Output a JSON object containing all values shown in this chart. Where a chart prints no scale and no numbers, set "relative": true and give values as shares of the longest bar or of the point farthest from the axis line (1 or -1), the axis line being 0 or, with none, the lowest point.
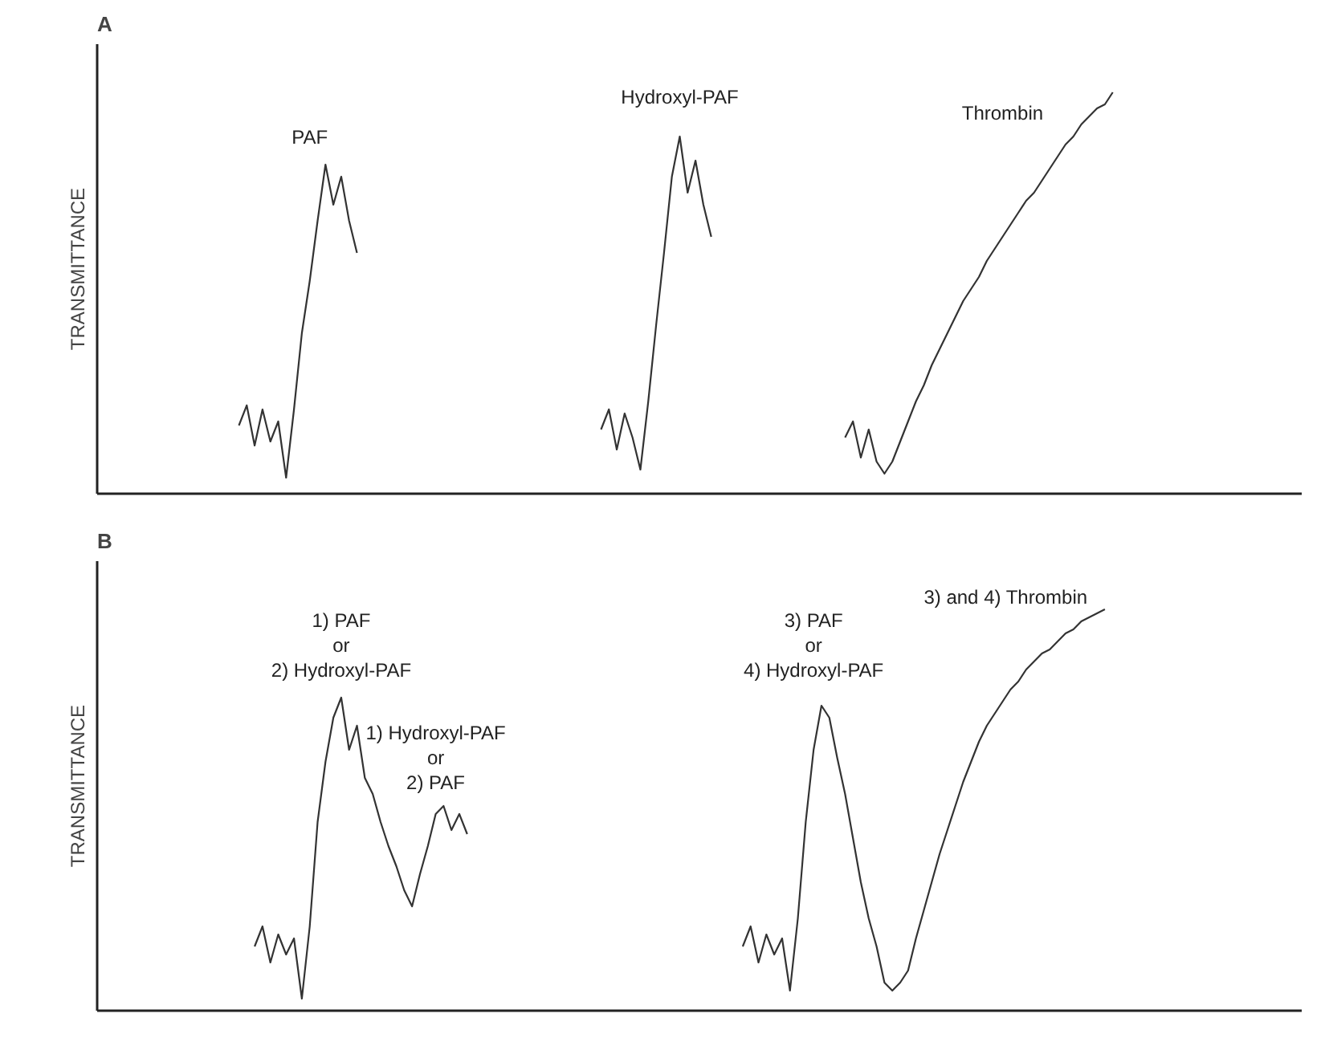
{
  "chart_data": [
    {
      "type": "line",
      "title": "A",
      "ylabel": "TRANSMITTANCE",
      "relative": true,
      "annotations": [
        "PAF",
        "Hydroxyl-PAF",
        "Thrombin"
      ],
      "categories": [
        null,
        null,
        null,
        null,
        null,
        null,
        null,
        null,
        null,
        null,
        null,
        null,
        null,
        null,
        null,
        null,
        null,
        null,
        null,
        null,
        null,
        null,
        null,
        null,
        null,
        null,
        null,
        null,
        null,
        null,
        null,
        null,
        null,
        null,
        null,
        null,
        null,
        null,
        null,
        null,
        null,
        null,
        null,
        null,
        null,
        null,
        null,
        null,
        null,
        null,
        null,
        null,
        null,
        null,
        null,
        null,
        null,
        null,
        null,
        null,
        null,
        null,
        null,
        null,
        null,
        null,
        null,
        null,
        null,
        null,
        null,
        null,
        null,
        null,
        null,
        null,
        null,
        null,
        null,
        null,
        null,
        null,
        null,
        null,
        null,
        null,
        null,
        null,
        null,
        null,
        null,
        null,
        null,
        null,
        null,
        null,
        null,
        null,
        null,
        null,
        null,
        null,
        null,
        null,
        null,
        null,
        null,
        null,
        null,
        null,
        null,
        null,
        null,
        null,
        null,
        null,
        null,
        null,
        null,
        null,
        null,
        null,
        null,
        null,
        null,
        null,
        null,
        null,
        null,
        null,
        null,
        null,
        null,
        null,
        null,
        null,
        null,
        null,
        null,
        null,
        null,
        null,
        null
      ],
      "series": [
        {
          "color": "#333333",
          "values": [
            null,
            null,
            null,
            null,
            null,
            null,
            null,
            null,
            null,
            null,
            null,
            null,
            null,
            null,
            null,
            null,
            0.17,
            0.22,
            0.12,
            0.21,
            0.13,
            0.18,
            0.04,
            0.21,
            0.4,
            0.53,
            0.68,
            0.82,
            0.72,
            0.79,
            0.68,
            0.6,
            null,
            null,
            null,
            null,
            null,
            null,
            null,
            null,
            null,
            null,
            null,
            null,
            null,
            null,
            null,
            null,
            null,
            null,
            null,
            null,
            null,
            null,
            null,
            null,
            null,
            null,
            null,
            null,
            null,
            null,
            null,
            null,
            null,
            null,
            null,
            null,
            null,
            null,
            null,
            null,
            null,
            null,
            null,
            null,
            null,
            null,
            null,
            null,
            null,
            null,
            null,
            null,
            null,
            null,
            null,
            null,
            null,
            null,
            null,
            null,
            null,
            null,
            null,
            null,
            null,
            null,
            null,
            null,
            null,
            null,
            null,
            null,
            null,
            null,
            null,
            null,
            null,
            null,
            null,
            null,
            null,
            null,
            null,
            null,
            null,
            null,
            null,
            null,
            null,
            null,
            null,
            null,
            null,
            null,
            null,
            null,
            null,
            null,
            null,
            null,
            null,
            null,
            null,
            null,
            null,
            null,
            null,
            null,
            null,
            null,
            null
          ]
        },
        {
          "color": "#333333",
          "values": [
            null,
            null,
            null,
            null,
            null,
            null,
            null,
            null,
            null,
            null,
            null,
            null,
            null,
            null,
            null,
            null,
            null,
            null,
            null,
            null,
            null,
            null,
            null,
            null,
            null,
            null,
            null,
            null,
            null,
            null,
            null,
            null,
            null,
            null,
            null,
            null,
            null,
            null,
            null,
            null,
            null,
            null,
            null,
            null,
            null,
            null,
            null,
            null,
            null,
            null,
            null,
            null,
            null,
            null,
            null,
            null,
            null,
            null,
            null,
            null,
            null,
            null,
            0.16,
            0.21,
            0.11,
            0.2,
            0.14,
            0.06,
            0.23,
            0.42,
            0.6,
            0.79,
            0.89,
            0.75,
            0.83,
            0.72,
            0.64,
            null,
            null,
            null,
            null,
            null,
            null,
            null,
            null,
            null,
            null,
            null,
            null,
            null,
            null,
            null,
            null,
            null,
            null,
            null,
            null,
            null,
            null,
            null,
            null,
            null,
            null,
            null,
            null,
            null,
            null,
            null,
            null,
            null,
            null,
            null,
            null,
            null,
            null,
            null,
            null,
            null,
            null,
            null,
            null,
            null,
            null,
            null,
            null,
            null,
            null,
            null,
            null,
            null,
            null,
            null,
            null,
            null,
            null,
            null,
            null,
            null,
            null,
            null,
            null,
            null,
            null
          ]
        },
        {
          "color": "#333333",
          "values": [
            null,
            null,
            null,
            null,
            null,
            null,
            null,
            null,
            null,
            null,
            null,
            null,
            null,
            null,
            null,
            null,
            null,
            null,
            null,
            null,
            null,
            null,
            null,
            null,
            null,
            null,
            null,
            null,
            null,
            null,
            null,
            null,
            null,
            null,
            null,
            null,
            null,
            null,
            null,
            null,
            null,
            null,
            null,
            null,
            null,
            null,
            null,
            null,
            null,
            null,
            null,
            null,
            null,
            null,
            null,
            null,
            null,
            null,
            null,
            null,
            null,
            null,
            null,
            null,
            null,
            null,
            null,
            null,
            null,
            null,
            null,
            null,
            null,
            null,
            null,
            null,
            null,
            null,
            null,
            null,
            null,
            null,
            null,
            null,
            null,
            null,
            null,
            null,
            null,
            null,
            null,
            null,
            null,
            0.14,
            0.18,
            0.09,
            0.16,
            0.08,
            0.05,
            0.08,
            0.13,
            0.18,
            0.23,
            0.27,
            0.32,
            0.36,
            0.4,
            0.44,
            0.48,
            0.51,
            0.54,
            0.58,
            0.61,
            0.64,
            0.67,
            0.7,
            0.73,
            0.75,
            0.78,
            0.81,
            0.84,
            0.87,
            0.89,
            0.92,
            0.94,
            0.96,
            0.97,
            1.0,
            null,
            null,
            null,
            null,
            null,
            null,
            null,
            null,
            null,
            null,
            null,
            null,
            null,
            null,
            null
          ]
        }
      ]
    },
    {
      "type": "line",
      "title": "B",
      "ylabel": "TRANSMITTANCE",
      "relative": true,
      "annotations": [
        "1) PAF\nor\n2) Hydroxyl-PAF",
        "1) Hydroxyl-PAF\nor\n2) PAF",
        "3) PAF\nor\n4) Hydroxyl-PAF",
        "3) and 4) Thrombin"
      ],
      "categories": [
        null,
        null,
        null,
        null,
        null,
        null,
        null,
        null,
        null,
        null,
        null,
        null,
        null,
        null,
        null,
        null,
        null,
        null,
        null,
        null,
        null,
        null,
        null,
        null,
        null,
        null,
        null,
        null,
        null,
        null,
        null,
        null,
        null,
        null,
        null,
        null,
        null,
        null,
        null,
        null,
        null,
        null,
        null,
        null,
        null,
        null,
        null,
        null,
        null,
        null,
        null,
        null,
        null,
        null,
        null,
        null,
        null,
        null,
        null,
        null,
        null,
        null,
        null,
        null,
        null,
        null,
        null,
        null,
        null,
        null,
        null,
        null,
        null,
        null,
        null,
        null,
        null,
        null,
        null,
        null,
        null,
        null,
        null,
        null,
        null,
        null,
        null,
        null,
        null,
        null,
        null,
        null,
        null,
        null,
        null,
        null,
        null,
        null,
        null,
        null,
        null,
        null,
        null,
        null,
        null,
        null,
        null,
        null,
        null,
        null,
        null,
        null,
        null,
        null,
        null,
        null,
        null,
        null,
        null,
        null,
        null,
        null,
        null,
        null,
        null,
        null,
        null,
        null,
        null,
        null,
        null,
        null,
        null,
        null,
        null,
        null,
        null,
        null,
        null,
        null,
        null,
        null,
        null
      ],
      "series": [
        {
          "color": "#333333",
          "values": [
            null,
            null,
            null,
            null,
            null,
            null,
            null,
            null,
            null,
            null,
            null,
            null,
            null,
            null,
            null,
            null,
            null,
            null,
            0.16,
            0.21,
            0.12,
            0.19,
            0.14,
            0.18,
            0.03,
            0.21,
            0.47,
            0.62,
            0.73,
            0.78,
            0.65,
            0.71,
            0.58,
            0.54,
            0.47,
            0.41,
            0.36,
            0.3,
            0.26,
            0.34,
            0.41,
            0.49,
            0.51,
            0.45,
            0.49,
            0.44,
            null,
            null,
            null,
            null,
            null,
            null,
            null,
            null,
            null,
            null,
            null,
            null,
            null,
            null,
            null,
            null,
            null,
            null,
            null,
            null,
            null,
            null,
            null,
            null,
            null,
            null,
            null,
            null,
            null,
            null,
            null,
            null,
            null,
            null,
            null,
            null,
            null,
            null,
            null,
            null,
            null,
            null,
            null,
            null,
            null,
            null,
            null,
            null,
            null,
            null,
            null,
            null,
            null,
            null,
            null,
            null,
            null,
            null,
            null,
            null,
            null,
            null,
            null,
            null,
            null,
            null,
            null,
            null,
            null,
            null,
            null,
            null,
            null,
            null,
            null,
            null,
            null,
            null,
            null,
            null,
            null,
            null,
            null,
            null,
            null,
            null,
            null,
            null,
            null,
            null,
            null,
            null,
            null,
            null,
            null,
            null,
            null
          ]
        },
        {
          "color": "#333333",
          "values": [
            null,
            null,
            null,
            null,
            null,
            null,
            null,
            null,
            null,
            null,
            null,
            null,
            null,
            null,
            null,
            null,
            null,
            null,
            null,
            null,
            null,
            null,
            null,
            null,
            null,
            null,
            null,
            null,
            null,
            null,
            null,
            null,
            null,
            null,
            null,
            null,
            null,
            null,
            null,
            null,
            null,
            null,
            null,
            null,
            null,
            null,
            null,
            null,
            null,
            null,
            null,
            null,
            null,
            null,
            null,
            null,
            null,
            null,
            null,
            null,
            null,
            null,
            null,
            null,
            null,
            null,
            null,
            null,
            null,
            null,
            null,
            null,
            null,
            null,
            null,
            null,
            null,
            null,
            null,
            null,
            0.16,
            0.21,
            0.12,
            0.19,
            0.14,
            0.18,
            0.05,
            0.23,
            0.47,
            0.65,
            0.76,
            0.73,
            0.63,
            0.54,
            0.43,
            0.32,
            0.23,
            0.16,
            0.07,
            0.05,
            0.07,
            0.1,
            0.18,
            0.25,
            0.32,
            0.39,
            0.45,
            0.51,
            0.57,
            0.62,
            0.67,
            0.71,
            0.74,
            0.77,
            0.8,
            0.82,
            0.85,
            0.87,
            0.89,
            0.9,
            0.92,
            0.94,
            0.95,
            0.97,
            0.98,
            0.99,
            1.0,
            null,
            null,
            null,
            null,
            null,
            null,
            null,
            null,
            null,
            null,
            null,
            null,
            null,
            null,
            null,
            null
          ]
        }
      ]
    }
  ]
}
